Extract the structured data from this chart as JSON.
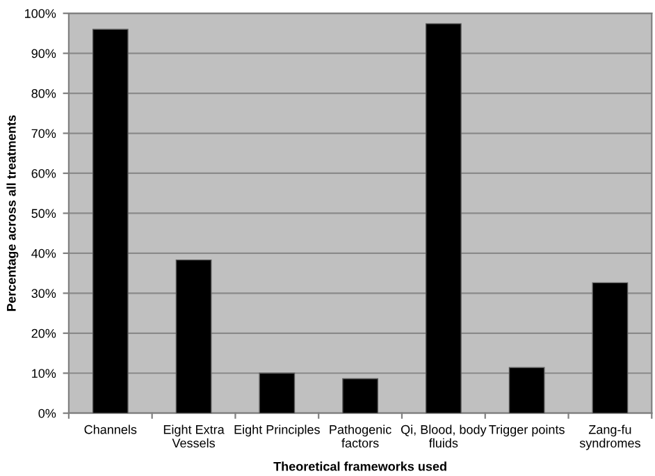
{
  "chart_data": {
    "type": "bar",
    "xlabel": "Theoretical frameworks used",
    "ylabel": "Percentage across all treatments",
    "categories": [
      "Channels",
      "Eight Extra\nVessels",
      "Eight Principles",
      "Pathogenic\nfactors",
      "Qi, Blood, body\nfluids",
      "Trigger points",
      "Zang-fu\nsyndromes"
    ],
    "values": [
      96.0,
      38.3,
      10.0,
      8.6,
      97.4,
      11.4,
      32.6
    ],
    "color": "#000000",
    "ylim": [
      0,
      100
    ],
    "yticks": [
      {
        "value": 0,
        "label": "0%"
      },
      {
        "value": 10,
        "label": "10%"
      },
      {
        "value": 20,
        "label": "20%"
      },
      {
        "value": 30,
        "label": "30%"
      },
      {
        "value": 40,
        "label": "40%"
      },
      {
        "value": 50,
        "label": "50%"
      },
      {
        "value": 60,
        "label": "60%"
      },
      {
        "value": 70,
        "label": "70%"
      },
      {
        "value": 80,
        "label": "80%"
      },
      {
        "value": 90,
        "label": "90%"
      },
      {
        "value": 100,
        "label": "100%"
      }
    ],
    "grid": "y",
    "legend": false
  }
}
